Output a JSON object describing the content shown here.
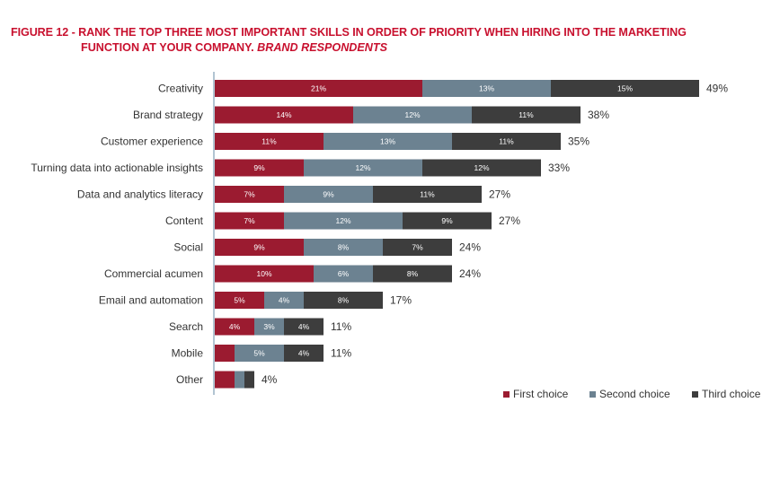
{
  "header": {
    "title_line1": "FIGURE 12 - RANK THE TOP THREE MOST IMPORTANT SKILLS IN ORDER OF PRIORITY WHEN HIRING INTO THE MARKETING",
    "title_line2": "FUNCTION AT YOUR COMPANY.",
    "subtitle": "BRAND RESPONDENTS"
  },
  "chart_data": {
    "type": "bar",
    "orientation": "horizontal",
    "stacked": true,
    "title": "FIGURE 12 - RANK THE TOP THREE MOST IMPORTANT SKILLS IN ORDER OF PRIORITY WHEN HIRING INTO THE MARKETING FUNCTION AT YOUR COMPANY.",
    "subtitle": "BRAND RESPONDENTS",
    "xlabel": "",
    "ylabel": "",
    "xlim": [
      0,
      49
    ],
    "grid": false,
    "legend_position": "bottom-right",
    "categories": [
      "Creativity",
      "Brand strategy",
      "Customer experience",
      "Turning data into actionable insights",
      "Data and analytics literacy",
      "Content",
      "Social",
      "Commercial acumen",
      "Email and automation",
      "Search",
      "Mobile",
      "Other"
    ],
    "series": [
      {
        "name": "First choice",
        "color": "#9b1b30",
        "values": [
          21,
          14,
          11,
          9,
          7,
          7,
          9,
          10,
          5,
          4,
          2,
          2
        ],
        "labels": [
          "21%",
          "14%",
          "11%",
          "9%",
          "7%",
          "7%",
          "9%",
          "10%",
          "5%",
          "4%",
          "",
          ""
        ]
      },
      {
        "name": "Second choice",
        "color": "#6c8291",
        "values": [
          13,
          12,
          13,
          12,
          9,
          12,
          8,
          6,
          4,
          3,
          5,
          1
        ],
        "labels": [
          "13%",
          "12%",
          "13%",
          "12%",
          "9%",
          "12%",
          "8%",
          "6%",
          "4%",
          "3%",
          "5%",
          ""
        ]
      },
      {
        "name": "Third choice",
        "color": "#3d3d3d",
        "values": [
          15,
          11,
          11,
          12,
          11,
          9,
          7,
          8,
          8,
          4,
          4,
          1
        ],
        "labels": [
          "15%",
          "11%",
          "11%",
          "12%",
          "11%",
          "9%",
          "7%",
          "8%",
          "8%",
          "4%",
          "4%",
          ""
        ]
      }
    ],
    "totals": [
      "49%",
      "38%",
      "35%",
      "33%",
      "27%",
      "27%",
      "24%",
      "24%",
      "17%",
      "11%",
      "11%",
      "4%"
    ]
  }
}
